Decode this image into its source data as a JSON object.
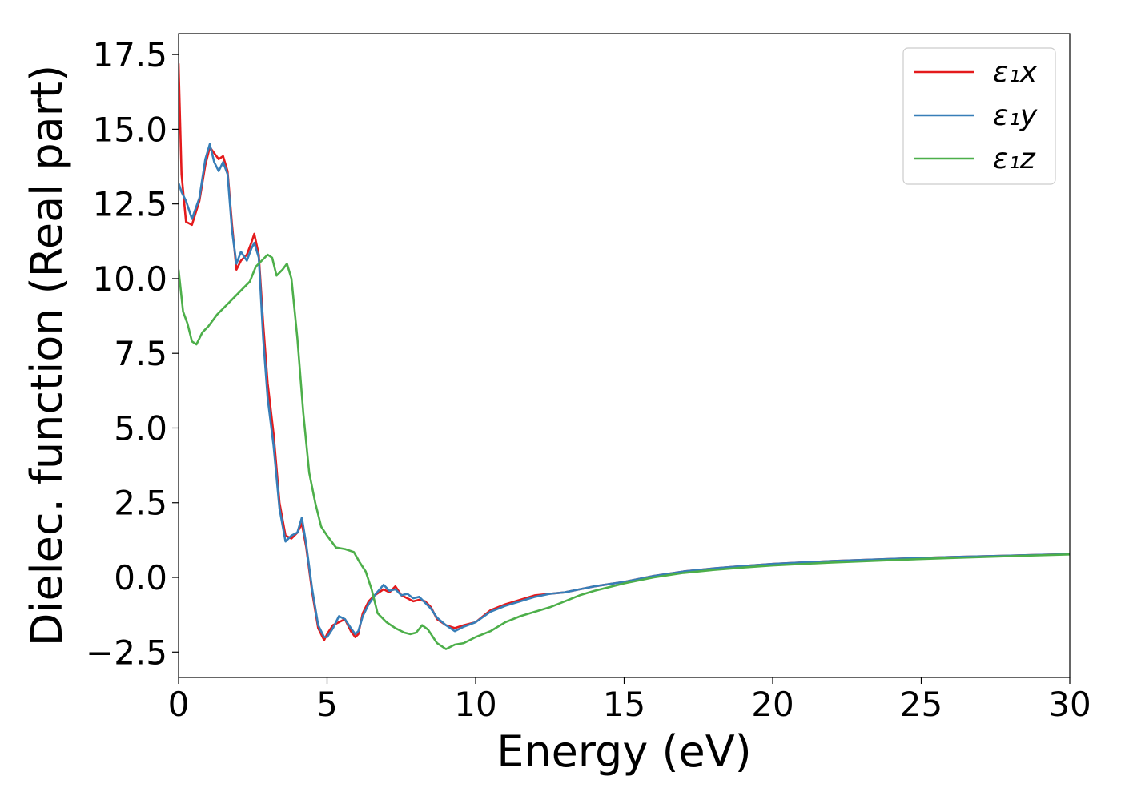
{
  "chart_data": {
    "type": "line",
    "title": "",
    "xlabel": "Energy (eV)",
    "ylabel": "Dielec. function (Real part)",
    "xlim": [
      0,
      30
    ],
    "ylim": [
      -3.35,
      18.2
    ],
    "xticks": [
      0,
      5,
      10,
      15,
      20,
      25,
      30
    ],
    "xtick_labels": [
      "0",
      "5",
      "10",
      "15",
      "20",
      "25",
      "30"
    ],
    "yticks": [
      -2.5,
      0.0,
      2.5,
      5.0,
      7.5,
      10.0,
      12.5,
      15.0,
      17.5
    ],
    "ytick_labels": [
      "−2.5",
      "0.0",
      "2.5",
      "5.0",
      "7.5",
      "10.0",
      "12.5",
      "15.0",
      "17.5"
    ],
    "grid": false,
    "legend_position": "top-right",
    "series": [
      {
        "name": "ε₁x",
        "color": "#e41a1c",
        "x": [
          0,
          0.1,
          0.25,
          0.45,
          0.7,
          0.9,
          1.05,
          1.2,
          1.35,
          1.5,
          1.65,
          1.8,
          1.95,
          2.1,
          2.3,
          2.45,
          2.55,
          2.7,
          2.85,
          3.0,
          3.2,
          3.4,
          3.6,
          3.8,
          4.0,
          4.15,
          4.3,
          4.5,
          4.7,
          4.9,
          5.0,
          5.2,
          5.4,
          5.6,
          5.8,
          5.95,
          6.05,
          6.2,
          6.4,
          6.6,
          6.9,
          7.1,
          7.3,
          7.5,
          7.7,
          7.9,
          8.1,
          8.3,
          8.5,
          8.7,
          9.0,
          9.3,
          9.6,
          10.0,
          10.5,
          11.0,
          11.5,
          12.0,
          12.5,
          13.0,
          13.5,
          14.0,
          15.0,
          16.0,
          17.0,
          18.0,
          19.0,
          20.0,
          22.0,
          24.0,
          26.0,
          28.0,
          30.0
        ],
        "y": [
          17.2,
          13.5,
          11.9,
          11.8,
          12.6,
          13.8,
          14.4,
          14.2,
          14.0,
          14.1,
          13.6,
          11.8,
          10.3,
          10.6,
          10.8,
          11.2,
          11.5,
          10.8,
          8.5,
          6.5,
          4.8,
          2.5,
          1.4,
          1.3,
          1.5,
          1.8,
          1.0,
          -0.5,
          -1.7,
          -2.1,
          -1.9,
          -1.6,
          -1.5,
          -1.4,
          -1.8,
          -2.0,
          -1.9,
          -1.2,
          -0.8,
          -0.6,
          -0.4,
          -0.5,
          -0.3,
          -0.6,
          -0.7,
          -0.8,
          -0.75,
          -0.8,
          -1.0,
          -1.4,
          -1.6,
          -1.7,
          -1.6,
          -1.5,
          -1.1,
          -0.9,
          -0.75,
          -0.6,
          -0.55,
          -0.5,
          -0.4,
          -0.3,
          -0.15,
          0.05,
          0.2,
          0.3,
          0.38,
          0.45,
          0.55,
          0.62,
          0.68,
          0.73,
          0.78
        ]
      },
      {
        "name": "ε₁y",
        "color": "#377eb8",
        "x": [
          0,
          0.1,
          0.25,
          0.45,
          0.7,
          0.9,
          1.05,
          1.2,
          1.35,
          1.5,
          1.65,
          1.8,
          1.95,
          2.1,
          2.3,
          2.45,
          2.55,
          2.7,
          2.85,
          3.0,
          3.2,
          3.4,
          3.6,
          3.8,
          4.0,
          4.15,
          4.3,
          4.5,
          4.7,
          4.9,
          5.0,
          5.2,
          5.4,
          5.6,
          5.8,
          5.95,
          6.05,
          6.2,
          6.4,
          6.6,
          6.9,
          7.1,
          7.3,
          7.5,
          7.7,
          7.9,
          8.1,
          8.3,
          8.5,
          8.7,
          9.0,
          9.3,
          9.6,
          10.0,
          10.5,
          11.0,
          11.5,
          12.0,
          12.5,
          13.0,
          13.5,
          14.0,
          15.0,
          16.0,
          17.0,
          18.0,
          19.0,
          20.0,
          22.0,
          24.0,
          26.0,
          28.0,
          30.0
        ],
        "y": [
          13.2,
          12.9,
          12.6,
          12.0,
          12.7,
          14.0,
          14.5,
          13.9,
          13.6,
          13.9,
          13.5,
          11.6,
          10.5,
          10.9,
          10.6,
          11.0,
          11.2,
          10.7,
          8.0,
          6.0,
          4.4,
          2.3,
          1.2,
          1.4,
          1.5,
          2.0,
          1.1,
          -0.4,
          -1.6,
          -2.0,
          -2.0,
          -1.7,
          -1.3,
          -1.4,
          -1.7,
          -1.9,
          -1.8,
          -1.3,
          -0.9,
          -0.6,
          -0.25,
          -0.45,
          -0.4,
          -0.6,
          -0.55,
          -0.7,
          -0.65,
          -0.85,
          -1.05,
          -1.35,
          -1.6,
          -1.8,
          -1.65,
          -1.5,
          -1.15,
          -0.95,
          -0.8,
          -0.65,
          -0.55,
          -0.5,
          -0.4,
          -0.3,
          -0.15,
          0.05,
          0.2,
          0.3,
          0.38,
          0.45,
          0.55,
          0.62,
          0.68,
          0.73,
          0.78
        ]
      },
      {
        "name": "ε₁z",
        "color": "#4daf4a",
        "x": [
          0,
          0.15,
          0.3,
          0.45,
          0.6,
          0.8,
          1.0,
          1.3,
          1.6,
          1.9,
          2.2,
          2.4,
          2.6,
          2.8,
          3.0,
          3.15,
          3.3,
          3.5,
          3.65,
          3.8,
          4.0,
          4.2,
          4.4,
          4.6,
          4.8,
          5.0,
          5.3,
          5.6,
          5.9,
          6.1,
          6.3,
          6.5,
          6.7,
          7.0,
          7.3,
          7.6,
          7.8,
          8.0,
          8.2,
          8.4,
          8.7,
          9.0,
          9.3,
          9.6,
          10.0,
          10.5,
          11.0,
          11.5,
          12.0,
          12.5,
          13.0,
          13.5,
          14.0,
          15.0,
          16.0,
          17.0,
          18.0,
          19.0,
          20.0,
          22.0,
          24.0,
          26.0,
          28.0,
          30.0
        ],
        "y": [
          10.3,
          8.9,
          8.5,
          7.9,
          7.8,
          8.2,
          8.4,
          8.8,
          9.1,
          9.4,
          9.7,
          9.9,
          10.4,
          10.6,
          10.8,
          10.7,
          10.1,
          10.3,
          10.5,
          10.0,
          8.0,
          5.5,
          3.5,
          2.5,
          1.7,
          1.4,
          1.0,
          0.95,
          0.85,
          0.5,
          0.2,
          -0.4,
          -1.2,
          -1.5,
          -1.7,
          -1.85,
          -1.9,
          -1.85,
          -1.6,
          -1.75,
          -2.2,
          -2.4,
          -2.25,
          -2.2,
          -2.0,
          -1.8,
          -1.5,
          -1.3,
          -1.15,
          -1.0,
          -0.8,
          -0.6,
          -0.45,
          -0.2,
          0.0,
          0.15,
          0.25,
          0.33,
          0.4,
          0.5,
          0.58,
          0.65,
          0.71,
          0.77
        ]
      }
    ]
  }
}
